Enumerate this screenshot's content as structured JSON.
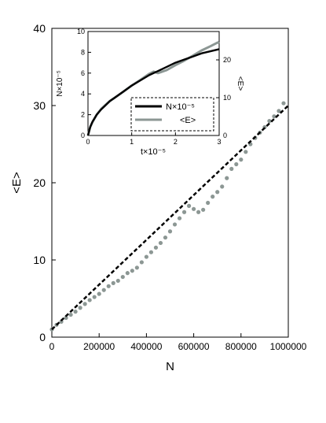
{
  "chart_data": [
    {
      "type": "scatter",
      "xlabel": "N",
      "ylabel": "<E>",
      "xlim": [
        0,
        1000000
      ],
      "ylim": [
        0,
        40
      ],
      "x_ticks": [
        0,
        200000,
        400000,
        600000,
        800000,
        1000000
      ],
      "x_tick_labels": [
        "0",
        "200000",
        "400000",
        "600000",
        "800000",
        "1000000"
      ],
      "y_ticks": [
        0,
        10,
        20,
        30,
        40
      ],
      "y_tick_labels": [
        "0",
        "10",
        "20",
        "30",
        "40"
      ],
      "grid": false,
      "series": [
        {
          "style": "points",
          "color": "#8c9794",
          "x": [
            0,
            20000,
            40000,
            60000,
            80000,
            100000,
            120000,
            140000,
            160000,
            180000,
            200000,
            220000,
            240000,
            260000,
            280000,
            300000,
            320000,
            340000,
            360000,
            380000,
            400000,
            420000,
            440000,
            460000,
            480000,
            500000,
            520000,
            540000,
            560000,
            580000,
            600000,
            620000,
            640000,
            660000,
            680000,
            700000,
            720000,
            740000,
            760000,
            780000,
            800000,
            820000,
            840000,
            860000,
            880000,
            900000,
            920000,
            940000,
            960000,
            980000
          ],
          "y": [
            1.0,
            1.6,
            2.0,
            2.5,
            2.9,
            3.3,
            3.8,
            4.3,
            4.8,
            5.2,
            5.6,
            6.1,
            6.6,
            7.0,
            7.3,
            7.8,
            8.3,
            8.6,
            9.0,
            9.7,
            10.4,
            11.0,
            11.6,
            12.2,
            12.9,
            13.7,
            14.6,
            15.4,
            16.2,
            17.0,
            16.6,
            16.2,
            16.5,
            17.4,
            18.2,
            18.8,
            19.5,
            20.6,
            21.8,
            22.4,
            23.0,
            24.0,
            25.0,
            25.8,
            26.5,
            27.2,
            28.0,
            28.6,
            29.3,
            30.3
          ]
        },
        {
          "style": "dashed-line",
          "color": "#000000",
          "x": [
            0,
            1000000
          ],
          "y": [
            1.0,
            30.0
          ]
        }
      ]
    },
    {
      "type": "line",
      "xlabel": "t×10⁻⁵",
      "ylabel": "N×10⁻⁵",
      "y2label": "<E>",
      "xlim": [
        0,
        3
      ],
      "ylim": [
        0,
        10
      ],
      "y2lim": [
        0,
        27.5
      ],
      "x_ticks": [
        0,
        1,
        2,
        3
      ],
      "x_tick_labels": [
        "0",
        "1",
        "2",
        "3"
      ],
      "y_ticks": [
        0,
        2,
        4,
        6,
        8,
        10
      ],
      "y_tick_labels": [
        "0",
        "2",
        "4",
        "6",
        "8",
        "10"
      ],
      "y2_ticks": [
        0,
        10,
        20
      ],
      "y2_tick_labels": [
        "0",
        "10",
        "20"
      ],
      "legend_position": "lower-right",
      "series": [
        {
          "name": "N×10⁻⁵",
          "color": "#000000",
          "axis": "left",
          "x": [
            0,
            0.05,
            0.1,
            0.2,
            0.3,
            0.4,
            0.5,
            0.6,
            0.8,
            1.0,
            1.2,
            1.4,
            1.6,
            1.8,
            2.0,
            2.2,
            2.4,
            2.6,
            2.8,
            3.0
          ],
          "y": [
            0,
            0.8,
            1.3,
            2.0,
            2.5,
            2.9,
            3.3,
            3.6,
            4.2,
            4.8,
            5.3,
            5.8,
            6.2,
            6.6,
            7.0,
            7.3,
            7.6,
            7.9,
            8.1,
            8.3
          ]
        },
        {
          "name": "<E>",
          "color": "#8c9794",
          "axis": "right",
          "x": [
            0,
            0.05,
            0.1,
            0.2,
            0.3,
            0.4,
            0.5,
            0.6,
            0.8,
            1.0,
            1.2,
            1.4,
            1.5,
            1.6,
            1.8,
            2.0,
            2.2,
            2.4,
            2.6,
            2.8,
            2.95,
            3.0
          ],
          "y": [
            0,
            2.2,
            3.5,
            5.5,
            7.0,
            8.1,
            9.1,
            9.9,
            11.5,
            13.2,
            14.7,
            16.3,
            16.9,
            16.5,
            17.3,
            18.6,
            19.8,
            21.1,
            22.5,
            23.6,
            24.5,
            24.7
          ]
        }
      ]
    }
  ]
}
